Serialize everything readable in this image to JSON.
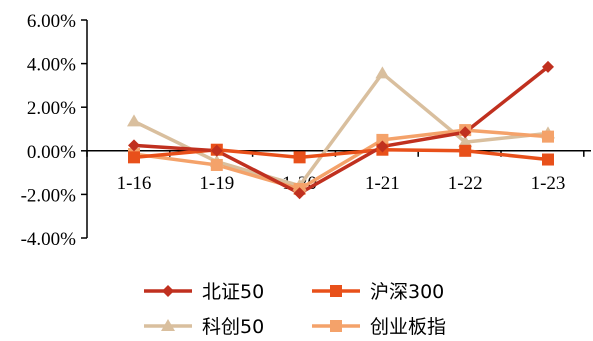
{
  "chart_data": {
    "type": "line",
    "categories": [
      "1-16",
      "1-19",
      "1-20",
      "1-21",
      "1-22",
      "1-23"
    ],
    "ylim": [
      -4,
      6
    ],
    "yticks": [
      6,
      4,
      2,
      0,
      -2,
      -4
    ],
    "ytick_labels": [
      "6.00%",
      "4.00%",
      "2.00%",
      "0.00%",
      "-2.00%",
      "-4.00%"
    ],
    "grid": false,
    "legend_position": "bottom",
    "series": [
      {
        "name": "北证50",
        "color": "#c0301f",
        "marker": "diamond",
        "values": [
          0.25,
          0.0,
          -1.95,
          0.2,
          0.85,
          3.85
        ]
      },
      {
        "name": "沪深300",
        "color": "#e8501a",
        "marker": "square",
        "values": [
          -0.3,
          0.05,
          -0.3,
          0.05,
          0.0,
          -0.4
        ]
      },
      {
        "name": "科创50",
        "color": "#d9bf9e",
        "marker": "triangle",
        "values": [
          1.35,
          -0.5,
          -1.6,
          3.55,
          0.4,
          0.8
        ]
      },
      {
        "name": "创业板指",
        "color": "#f4a26a",
        "marker": "square",
        "values": [
          -0.15,
          -0.65,
          -1.75,
          0.5,
          0.95,
          0.65
        ]
      }
    ]
  }
}
